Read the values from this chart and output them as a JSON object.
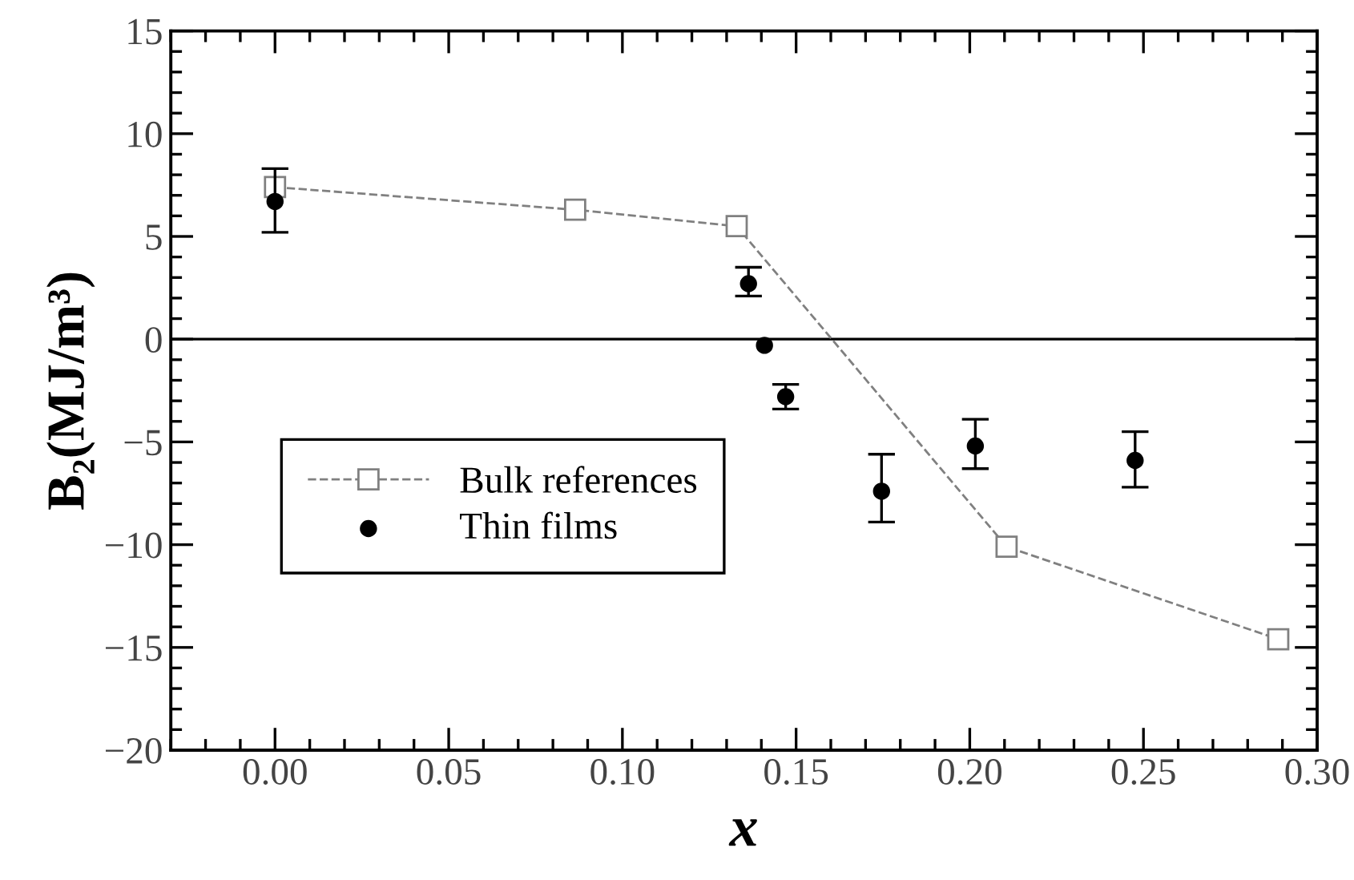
{
  "chart_data": {
    "type": "scatter",
    "xlabel": "x",
    "ylabel": "B₂(MJ/m³)",
    "xlim": [
      -0.03,
      0.3
    ],
    "ylim": [
      -20,
      15
    ],
    "xticks": [
      {
        "value": 0,
        "label": "0.00"
      },
      {
        "value": 0.05,
        "label": "0.05"
      },
      {
        "value": 0.1,
        "label": "0.10"
      },
      {
        "value": 0.15,
        "label": "0.15"
      },
      {
        "value": 0.2,
        "label": "0.20"
      },
      {
        "value": 0.25,
        "label": "0.25"
      },
      {
        "value": 0.3,
        "label": "0.30"
      }
    ],
    "yticks": [
      {
        "value": -20,
        "label": "−20"
      },
      {
        "value": -15,
        "label": "−15"
      },
      {
        "value": -10,
        "label": "−10"
      },
      {
        "value": -5,
        "label": "−5"
      },
      0,
      5,
      10,
      15
    ],
    "grid": false,
    "legend": "lower left",
    "ref_lines": [
      {
        "axis": "y",
        "value": 0,
        "color": "#000000",
        "line_style": "solid"
      }
    ],
    "series": [
      {
        "name": "Bulk references",
        "type": "line",
        "color": "#808080",
        "marker": "square",
        "line_style": "dashed",
        "x": [
          0.0,
          0.0864,
          0.1329,
          0.2106,
          0.2888
        ],
        "values": [
          7.4,
          6.3,
          5.5,
          -10.1,
          -14.6
        ]
      },
      {
        "name": "Thin films",
        "color": "#000000",
        "marker": "circle",
        "x": [
          0.0,
          0.1363,
          0.1409,
          0.147,
          0.1746,
          0.2016,
          0.2476
        ],
        "values": [
          6.7,
          2.7,
          -0.3,
          -2.8,
          -7.4,
          -5.2,
          -5.9
        ],
        "errors": [
          [
            5.2,
            8.3
          ],
          [
            2.1,
            3.5
          ],
          null,
          [
            -3.4,
            -2.2
          ],
          [
            -8.9,
            -5.6
          ],
          [
            -6.3,
            -3.9
          ],
          [
            -7.2,
            -4.5
          ]
        ]
      }
    ]
  }
}
